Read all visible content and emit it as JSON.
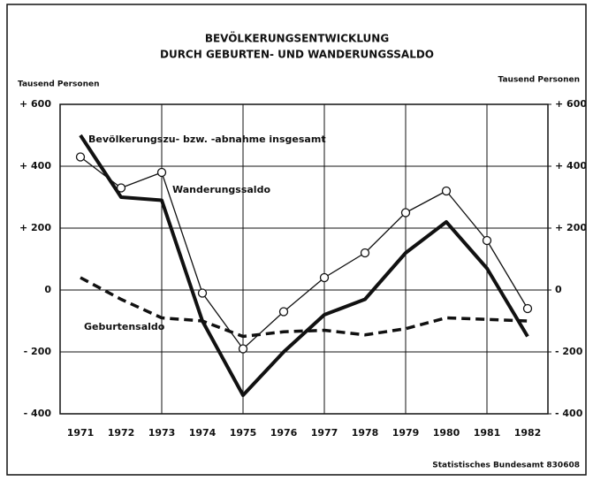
{
  "chart_data": {
    "type": "line",
    "title": "BEVÖLKERUNGSENTWICKLUNG",
    "subtitle": "DURCH GEBURTEN- UND WANDERUNGSSALDO",
    "ylabel": "Tausend Personen",
    "y2label": "Tausend Personen",
    "source": "Statistisches Bundesamt 830608",
    "categories": [
      "1971",
      "1972",
      "1973",
      "1974",
      "1975",
      "1976",
      "1977",
      "1978",
      "1979",
      "1980",
      "1981",
      "1982"
    ],
    "series": [
      {
        "name": "Bevölkerungszu- bzw. -abnahme insgesamt",
        "color": "#111111",
        "style": "thick",
        "values": [
          500,
          300,
          290,
          -100,
          -340,
          -200,
          -80,
          -30,
          120,
          220,
          70,
          -150
        ]
      },
      {
        "name": "Wanderungssaldo",
        "color": "#111111",
        "style": "thin-markers",
        "values": [
          430,
          330,
          380,
          -10,
          -190,
          -70,
          40,
          120,
          250,
          320,
          160,
          -60
        ]
      },
      {
        "name": "Geburtensaldo",
        "color": "#111111",
        "style": "dashed",
        "values": [
          40,
          -30,
          -90,
          -100,
          -150,
          -135,
          -130,
          -145,
          -125,
          -90,
          -95,
          -100
        ]
      }
    ],
    "ylim": [
      -400,
      600
    ],
    "yticks": [
      {
        "value": -400,
        "label": "- 400"
      },
      {
        "value": -200,
        "label": "- 200"
      },
      0,
      {
        "value": 200,
        "label": "+ 200"
      },
      {
        "value": 400,
        "label": "+ 400"
      },
      {
        "value": 600,
        "label": "+ 600"
      }
    ],
    "y2lim": [
      -400,
      600
    ],
    "y2ticks": [
      {
        "value": -400,
        "label": "- 400"
      },
      {
        "value": -200,
        "label": "- 200"
      },
      0,
      {
        "value": 200,
        "label": "+ 200"
      },
      {
        "value": 400,
        "label": "+ 400"
      },
      {
        "value": 600,
        "label": "+ 600"
      }
    ],
    "grid": true
  }
}
